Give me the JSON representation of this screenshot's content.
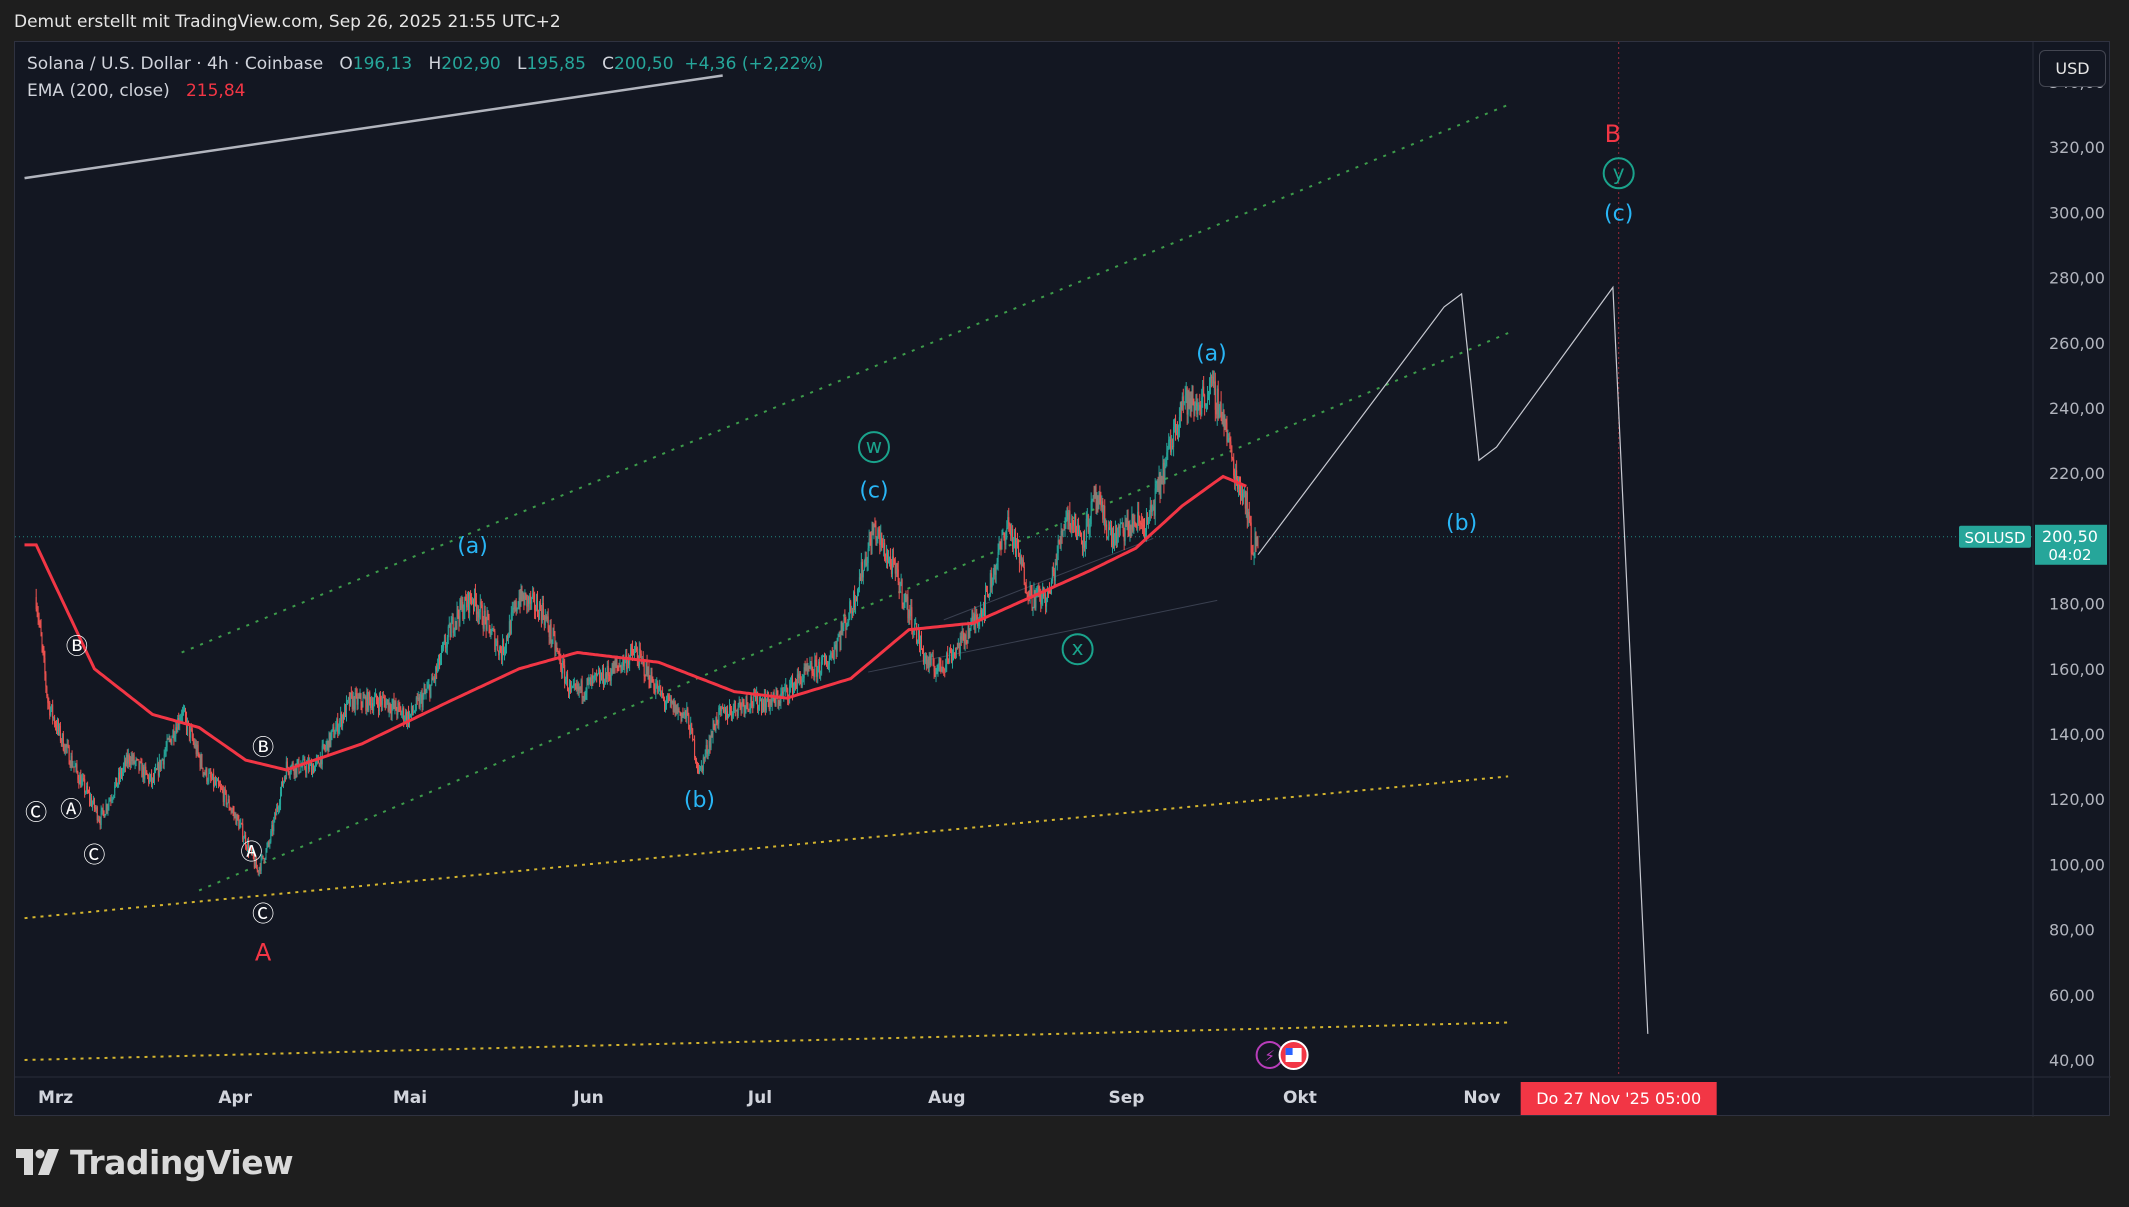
{
  "caption": "Demut erstellt mit TradingView.com, Sep 26, 2025 21:55 UTC+2",
  "legend": {
    "symbol": "Solana / U.S. Dollar · 4h · Coinbase",
    "o_label": "O",
    "o": "196,13",
    "h_label": "H",
    "h": "202,90",
    "l_label": "L",
    "l": "195,85",
    "c_label": "C",
    "c": "200,50",
    "change": "+4,36 (+2,22%)",
    "ema_label": "EMA (200, close)",
    "ema": "215,84"
  },
  "currency_button": "USD",
  "brand": "TradingView",
  "colors": {
    "background": "#131722",
    "bull": "#26a69a",
    "bear": "#ef5350",
    "ema": "#f23645",
    "wave_cyan": "#29b6f6",
    "wave_teal": "#1aa38c",
    "red_label": "#f23645",
    "green_channel": "#3d9c4b",
    "yellow_line": "#d4b52e"
  },
  "chart_data": {
    "type": "candlestick",
    "title": "Solana / U.S. Dollar · 4h · Coinbase",
    "ylim": [
      40,
      345
    ],
    "y_ticks": [
      "40,00",
      "60,00",
      "80,00",
      "100,00",
      "120,00",
      "140,00",
      "160,00",
      "180,00",
      "200,00",
      "220,00",
      "240,00",
      "260,00",
      "280,00",
      "300,00",
      "320,00",
      "340,00"
    ],
    "x_ticks": [
      "Mrz",
      "Apr",
      "Mai",
      "Jun",
      "Jul",
      "Aug",
      "Sep",
      "Okt",
      "Nov"
    ],
    "price_anchors": [
      [
        "2025-02-28",
        182
      ],
      [
        "2025-03-02",
        150
      ],
      [
        "2025-03-04",
        140
      ],
      [
        "2025-03-07",
        128
      ],
      [
        "2025-03-11",
        114
      ],
      [
        "2025-03-16",
        133
      ],
      [
        "2025-03-20",
        125
      ],
      [
        "2025-03-25",
        147
      ],
      [
        "2025-03-29",
        128
      ],
      [
        "2025-04-01",
        122
      ],
      [
        "2025-04-04",
        112
      ],
      [
        "2025-04-07",
        98
      ],
      [
        "2025-04-09",
        106
      ],
      [
        "2025-04-12",
        130
      ],
      [
        "2025-04-17",
        130
      ],
      [
        "2025-04-23",
        150
      ],
      [
        "2025-04-29",
        150
      ],
      [
        "2025-05-03",
        145
      ],
      [
        "2025-05-07",
        155
      ],
      [
        "2025-05-11",
        176
      ],
      [
        "2025-05-14",
        182
      ],
      [
        "2025-05-19",
        165
      ],
      [
        "2025-05-22",
        182
      ],
      [
        "2025-05-26",
        178
      ],
      [
        "2025-05-31",
        152
      ],
      [
        "2025-06-06",
        158
      ],
      [
        "2025-06-11",
        165
      ],
      [
        "2025-06-16",
        150
      ],
      [
        "2025-06-20",
        145
      ],
      [
        "2025-06-22",
        128
      ],
      [
        "2025-06-25",
        145
      ],
      [
        "2025-06-30",
        150
      ],
      [
        "2025-07-05",
        150
      ],
      [
        "2025-07-10",
        158
      ],
      [
        "2025-07-14",
        162
      ],
      [
        "2025-07-18",
        178
      ],
      [
        "2025-07-22",
        203
      ],
      [
        "2025-07-26",
        188
      ],
      [
        "2025-07-31",
        162
      ],
      [
        "2025-08-02",
        160
      ],
      [
        "2025-08-06",
        168
      ],
      [
        "2025-08-10",
        180
      ],
      [
        "2025-08-14",
        205
      ],
      [
        "2025-08-18",
        182
      ],
      [
        "2025-08-21",
        182
      ],
      [
        "2025-08-24",
        208
      ],
      [
        "2025-08-27",
        200
      ],
      [
        "2025-08-29",
        212
      ],
      [
        "2025-09-01",
        200
      ],
      [
        "2025-09-05",
        205
      ],
      [
        "2025-09-07",
        204
      ],
      [
        "2025-09-10",
        222
      ],
      [
        "2025-09-13",
        243
      ],
      [
        "2025-09-15",
        240
      ],
      [
        "2025-09-18",
        246
      ],
      [
        "2025-09-20",
        238
      ],
      [
        "2025-09-22",
        220
      ],
      [
        "2025-09-24",
        212
      ],
      [
        "2025-09-25",
        196
      ],
      [
        "2025-09-26",
        200.5
      ]
    ],
    "ema_anchors": [
      [
        "2025-02-28",
        198
      ],
      [
        "2025-03-10",
        160
      ],
      [
        "2025-03-20",
        146
      ],
      [
        "2025-03-28",
        142
      ],
      [
        "2025-04-05",
        132
      ],
      [
        "2025-04-12",
        129
      ],
      [
        "2025-04-25",
        137
      ],
      [
        "2025-05-10",
        150
      ],
      [
        "2025-05-22",
        160
      ],
      [
        "2025-06-01",
        165
      ],
      [
        "2025-06-15",
        162
      ],
      [
        "2025-06-28",
        153
      ],
      [
        "2025-07-07",
        151
      ],
      [
        "2025-07-18",
        157
      ],
      [
        "2025-07-28",
        172
      ],
      [
        "2025-08-08",
        174
      ],
      [
        "2025-08-18",
        182
      ],
      [
        "2025-08-28",
        190
      ],
      [
        "2025-09-05",
        197
      ],
      [
        "2025-09-13",
        210
      ],
      [
        "2025-09-20",
        219
      ],
      [
        "2025-09-24",
        216
      ]
    ],
    "current_price": {
      "label": "SOLUSD",
      "value": "200,50",
      "countdown": "04:02"
    },
    "crosshair_date": "Do 27 Nov '25   05:00",
    "annotations": [
      {
        "text": "A",
        "style": "red",
        "date": "2025-04-08",
        "price": 73
      },
      {
        "text": "Ⓒ",
        "style": "circle-white",
        "date": "2025-04-08",
        "price": 85
      },
      {
        "text": "Ⓐ",
        "style": "circle-white",
        "date": "2025-04-06",
        "price": 104
      },
      {
        "text": "Ⓑ",
        "style": "circle-white",
        "date": "2025-04-08",
        "price": 136
      },
      {
        "text": "Ⓐ",
        "style": "circle-white",
        "date": "2025-03-06",
        "price": 117
      },
      {
        "text": "Ⓑ",
        "style": "circle-white",
        "date": "2025-03-07",
        "price": 167
      },
      {
        "text": "Ⓒ",
        "style": "circle-white",
        "date": "2025-03-10",
        "price": 103
      },
      {
        "text": "Ⓒ",
        "style": "circle-white",
        "date": "2025-02-28",
        "price": 116
      },
      {
        "text": "(a)",
        "style": "cyan",
        "date": "2025-05-14",
        "price": 198
      },
      {
        "text": "(b)",
        "style": "cyan",
        "date": "2025-06-22",
        "price": 120
      },
      {
        "text": "(c)",
        "style": "cyan",
        "date": "2025-07-22",
        "price": 215
      },
      {
        "text": "w",
        "style": "circle-teal",
        "date": "2025-07-22",
        "price": 228
      },
      {
        "text": "x",
        "style": "circle-teal",
        "date": "2025-08-26",
        "price": 166
      },
      {
        "text": "(a)",
        "style": "cyan",
        "date": "2025-09-18",
        "price": 257
      },
      {
        "text": "(b)",
        "style": "cyan",
        "date": "2025-10-31",
        "price": 205
      },
      {
        "text": "(c)",
        "style": "cyan",
        "date": "2025-11-27",
        "price": 300
      },
      {
        "text": "y",
        "style": "circle-teal",
        "date": "2025-11-27",
        "price": 312
      },
      {
        "text": "B",
        "style": "red",
        "date": "2025-11-26",
        "price": 324
      }
    ]
  }
}
